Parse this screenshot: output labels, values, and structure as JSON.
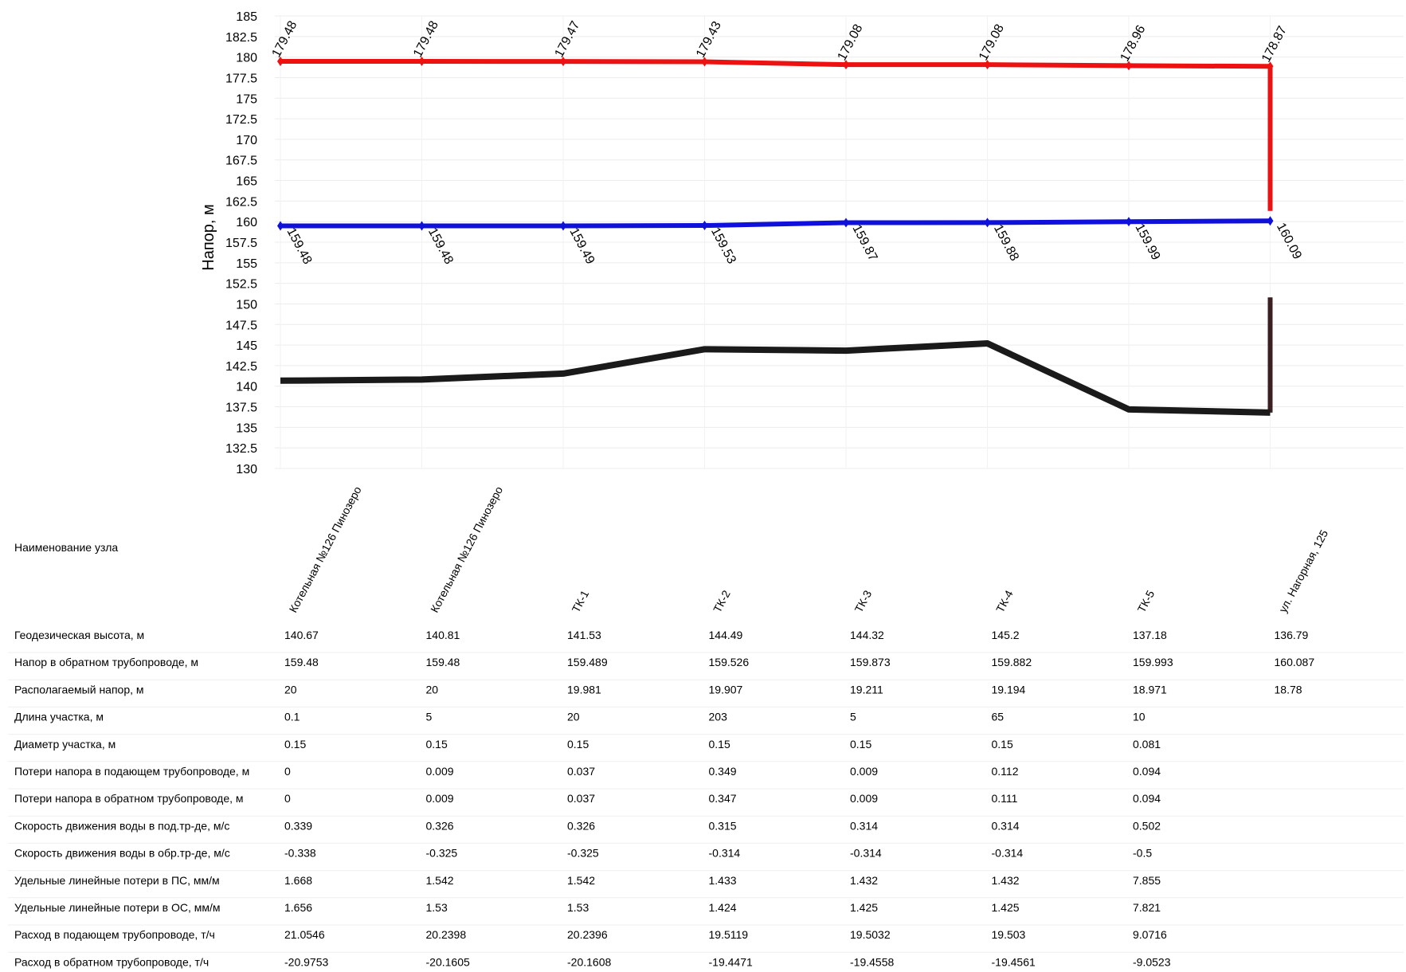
{
  "chart_data": {
    "type": "line",
    "ylabel": "Напор, м",
    "ylim": [
      130,
      185
    ],
    "yticks": [
      185,
      182.5,
      180,
      177.5,
      175,
      172.5,
      170,
      167.5,
      165,
      162.5,
      160,
      157.5,
      155,
      152.5,
      150,
      147.5,
      145,
      142.5,
      140,
      137.5,
      135,
      132.5,
      130
    ],
    "grid": true,
    "categories": [
      "Котельная №126 Пинозеро",
      "Котельная №126 Пинозеро",
      "ТК-1",
      "ТК-2",
      "ТК-3",
      "ТК-4",
      "ТК-5",
      "ул. Нагорная, 125"
    ],
    "series": [
      {
        "values": [
          179.48,
          179.48,
          179.47,
          179.43,
          179.08,
          179.08,
          178.96,
          178.87
        ],
        "labels": [
          "179.48",
          "179.48",
          "179.47",
          "179.43",
          "179.08",
          "179.08",
          "178.96",
          "178.87"
        ],
        "color": "#ee1111"
      },
      {
        "values": [
          159.48,
          159.48,
          159.49,
          159.53,
          159.87,
          159.88,
          159.99,
          160.09
        ],
        "labels": [
          "159.48",
          "159.48",
          "159.49",
          "159.53",
          "159.87",
          "159.88",
          "159.99",
          "160.09"
        ],
        "color": "#1010dd"
      },
      {
        "values": [
          140.67,
          140.81,
          141.53,
          144.49,
          144.32,
          145.2,
          137.18,
          136.79
        ],
        "color": "#1a1a1a"
      }
    ],
    "consumer_drop": {
      "supply_to": 161.3,
      "ground_top": 150.8,
      "color": "#3a2020"
    }
  },
  "table": {
    "name_label": "Наименование узла",
    "rows": [
      {
        "label": "Геодезическая высота, м",
        "values": [
          "140.67",
          "140.81",
          "141.53",
          "144.49",
          "144.32",
          "145.2",
          "137.18",
          "136.79"
        ]
      },
      {
        "label": "Напор в обратном трубопроводе, м",
        "values": [
          "159.48",
          "159.48",
          "159.489",
          "159.526",
          "159.873",
          "159.882",
          "159.993",
          "160.087"
        ]
      },
      {
        "label": "Располагаемый напор, м",
        "values": [
          "20",
          "20",
          "19.981",
          "19.907",
          "19.211",
          "19.194",
          "18.971",
          "18.78"
        ]
      },
      {
        "label": "Длина участка, м",
        "values": [
          "0.1",
          "5",
          "20",
          "203",
          "5",
          "65",
          "10",
          ""
        ]
      },
      {
        "label": "Диаметр участка, м",
        "values": [
          "0.15",
          "0.15",
          "0.15",
          "0.15",
          "0.15",
          "0.15",
          "0.081",
          ""
        ]
      },
      {
        "label": "Потери напора в подающем трубопроводе, м",
        "values": [
          "0",
          "0.009",
          "0.037",
          "0.349",
          "0.009",
          "0.112",
          "0.094",
          ""
        ]
      },
      {
        "label": "Потери напора в обратном трубопроводе, м",
        "values": [
          "0",
          "0.009",
          "0.037",
          "0.347",
          "0.009",
          "0.111",
          "0.094",
          ""
        ]
      },
      {
        "label": "Скорость движения воды в под.тр-де, м/с",
        "values": [
          "0.339",
          "0.326",
          "0.326",
          "0.315",
          "0.314",
          "0.314",
          "0.502",
          ""
        ]
      },
      {
        "label": "Скорость движения воды в обр.тр-де, м/с",
        "values": [
          "-0.338",
          "-0.325",
          "-0.325",
          "-0.314",
          "-0.314",
          "-0.314",
          "-0.5",
          ""
        ]
      },
      {
        "label": "Удельные линейные потери в ПС, мм/м",
        "values": [
          "1.668",
          "1.542",
          "1.542",
          "1.433",
          "1.432",
          "1.432",
          "7.855",
          ""
        ]
      },
      {
        "label": "Удельные линейные потери в ОС, мм/м",
        "values": [
          "1.656",
          "1.53",
          "1.53",
          "1.424",
          "1.425",
          "1.425",
          "7.821",
          ""
        ]
      },
      {
        "label": "Расход в подающем трубопроводе, т/ч",
        "values": [
          "21.0546",
          "20.2398",
          "20.2396",
          "19.5119",
          "19.5032",
          "19.503",
          "9.0716",
          ""
        ]
      },
      {
        "label": "Расход в обратном трубопроводе, т/ч",
        "values": [
          "-20.9753",
          "-20.1605",
          "-20.1608",
          "-19.4471",
          "-19.4558",
          "-19.4561",
          "-9.0523",
          ""
        ]
      }
    ]
  }
}
